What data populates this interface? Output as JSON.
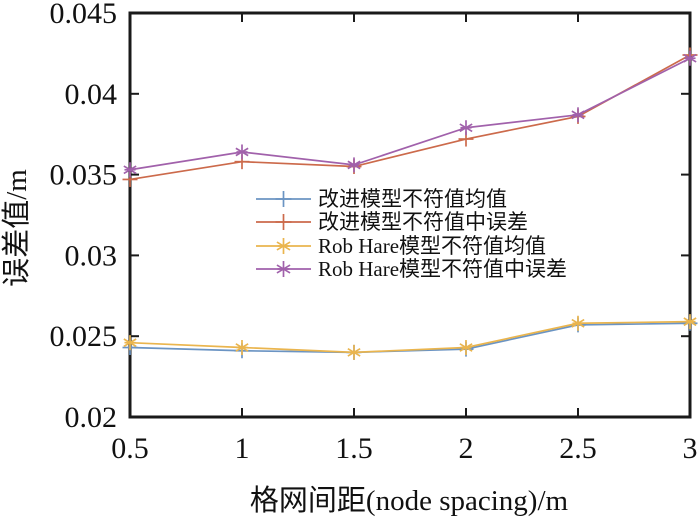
{
  "figure": {
    "background": "#ffffff",
    "axis_color": "#1a1a1a"
  },
  "chart_data": {
    "type": "line",
    "title": "",
    "xlabel": "格网间距(node spacing)/m",
    "ylabel": "误差值/m",
    "xlim": [
      0.5,
      3
    ],
    "ylim": [
      0.02,
      0.045
    ],
    "grid": false,
    "legend_position": "inside-center-left",
    "xticks": {
      "values": [
        0.5,
        1,
        1.5,
        2,
        2.5,
        3
      ],
      "labels": [
        "0.5",
        "1",
        "1.5",
        "2",
        "2.5",
        "3"
      ]
    },
    "yticks": {
      "values": [
        0.02,
        0.025,
        0.03,
        0.035,
        0.04,
        0.045
      ],
      "labels": [
        "0.02",
        "0.025",
        "0.03",
        "0.035",
        "0.04",
        "0.045"
      ]
    },
    "x": [
      0.5,
      1,
      1.5,
      2,
      2.5,
      3
    ],
    "series": [
      {
        "name": "改进模型不符值均值",
        "color": "#6b94c3",
        "marker": "plus",
        "values": [
          0.0243,
          0.0241,
          0.024,
          0.0242,
          0.0257,
          0.0258
        ]
      },
      {
        "name": "改进模型不符值中误差",
        "color": "#cc6a4b",
        "marker": "plus",
        "values": [
          0.0347,
          0.0358,
          0.0355,
          0.0372,
          0.0386,
          0.0424
        ]
      },
      {
        "name": "Rob Hare模型不符值均值",
        "color": "#eab54e",
        "marker": "asterisk",
        "values": [
          0.0246,
          0.0243,
          0.024,
          0.0243,
          0.0258,
          0.0259
        ]
      },
      {
        "name": "Rob Hare模型不符值中误差",
        "color": "#a161ab",
        "marker": "asterisk",
        "values": [
          0.0353,
          0.0364,
          0.0356,
          0.0379,
          0.0387,
          0.0422
        ]
      }
    ]
  }
}
